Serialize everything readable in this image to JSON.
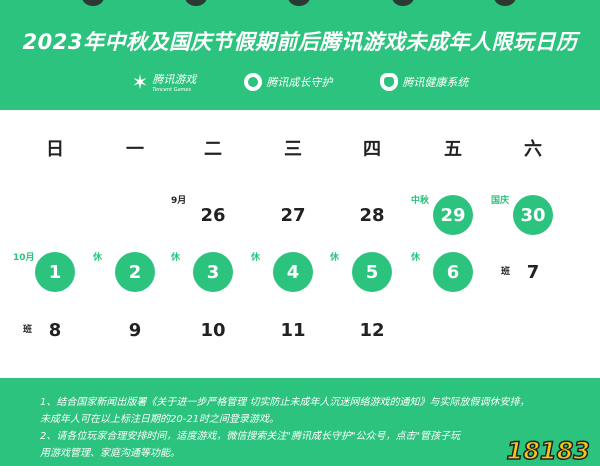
{
  "header": {
    "title": "2023年中秋及国庆节假期前后腾讯游戏未成年人限玩日历",
    "logos": [
      {
        "name": "腾讯游戏",
        "sub": "Tencent Games"
      },
      {
        "name": "腾讯成长守护"
      },
      {
        "name": "腾讯健康系统"
      }
    ]
  },
  "weekdays": [
    "日",
    "一",
    "二",
    "三",
    "四",
    "五",
    "六"
  ],
  "days": [
    {
      "d": "26",
      "tag": "9月",
      "hl": false
    },
    {
      "d": "27",
      "hl": false
    },
    {
      "d": "28",
      "hl": false
    },
    {
      "d": "29",
      "tag": "中秋",
      "hl": true
    },
    {
      "d": "30",
      "tag": "国庆",
      "hl": true
    },
    {
      "d": "1",
      "tag": "10月",
      "hl": true
    },
    {
      "d": "2",
      "tag": "休",
      "hl": true
    },
    {
      "d": "3",
      "tag": "休",
      "hl": true
    },
    {
      "d": "4",
      "tag": "休",
      "hl": true
    },
    {
      "d": "5",
      "tag": "休",
      "hl": true
    },
    {
      "d": "6",
      "tag": "休",
      "hl": true
    },
    {
      "d": "7",
      "tag": "班",
      "hl": false
    },
    {
      "d": "8",
      "tag": "班",
      "hl": false
    },
    {
      "d": "9",
      "hl": false
    },
    {
      "d": "10",
      "hl": false
    },
    {
      "d": "11",
      "hl": false
    },
    {
      "d": "12",
      "hl": false
    }
  ],
  "colors": {
    "brand": "#2bc37d"
  },
  "footer": {
    "lines": [
      "1、结合国家新闻出版署《关于进一步严格管理 切实防止未成年人沉迷网络游戏的通知》与实际放假调休安排，",
      "未成年人可在以上标注日期的20-21时之间登录游戏。",
      "2、请各位玩家合理安排时间，适度游戏，微信搜索关注\"腾讯成长守护\"公众号，点击\"管孩子玩",
      "用游戏管理、家庭沟通等功能。"
    ],
    "watermark": "18183"
  }
}
